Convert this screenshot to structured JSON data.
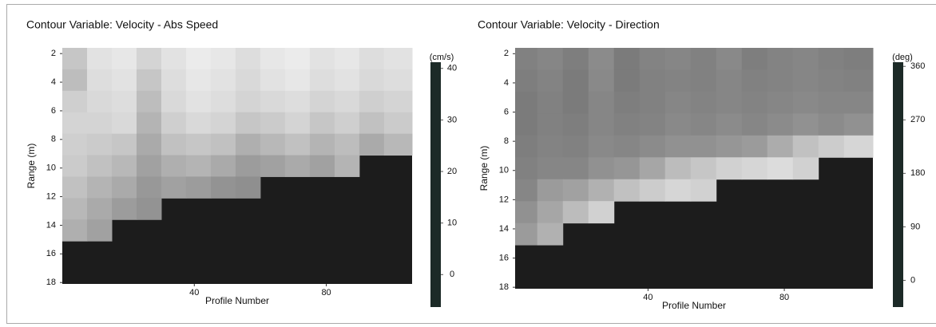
{
  "chart_data": [
    {
      "type": "heatmap",
      "title": "Contour Variable:  Velocity - Abs Speed",
      "xlabel": "Profile Number",
      "ylabel": "Range (m)",
      "x": [
        3.75,
        11.25,
        18.75,
        26.25,
        33.75,
        41.25,
        48.75,
        56.25,
        63.75,
        71.25,
        78.75,
        86.25,
        93.75,
        101.25
      ],
      "y": [
        2.35,
        3.85,
        5.35,
        6.85,
        8.35,
        9.85,
        11.35,
        12.85,
        14.35,
        15.85,
        17.35
      ],
      "z": [
        [
          30,
          36,
          37,
          33,
          36,
          38,
          37,
          35,
          37,
          38,
          36,
          37,
          35,
          36
        ],
        [
          28,
          35,
          36,
          30,
          35,
          37,
          36,
          34,
          36,
          37,
          35,
          36,
          34,
          35
        ],
        [
          32,
          34,
          35,
          28,
          34,
          36,
          35,
          33,
          34,
          35,
          33,
          34,
          32,
          33
        ],
        [
          33,
          33,
          34,
          26,
          32,
          34,
          33,
          30,
          31,
          33,
          30,
          32,
          29,
          31
        ],
        [
          32,
          31,
          30,
          24,
          29,
          30,
          29,
          25,
          27,
          29,
          26,
          28,
          24,
          27
        ],
        [
          31,
          29,
          27,
          22,
          25,
          26,
          24,
          21,
          22,
          24,
          22,
          26,
          null,
          null
        ],
        [
          29,
          26,
          24,
          20,
          22,
          21,
          19,
          18,
          null,
          null,
          null,
          null,
          null,
          null
        ],
        [
          27,
          24,
          21,
          19,
          null,
          null,
          null,
          null,
          null,
          null,
          null,
          null,
          null,
          null
        ],
        [
          25,
          22,
          null,
          null,
          null,
          null,
          null,
          null,
          null,
          null,
          null,
          null,
          null,
          null
        ],
        [
          null,
          null,
          null,
          null,
          null,
          null,
          null,
          null,
          null,
          null,
          null,
          null,
          null,
          null
        ],
        [
          null,
          null,
          null,
          null,
          null,
          null,
          null,
          null,
          null,
          null,
          null,
          null,
          null,
          null
        ]
      ],
      "xlim": [
        0,
        106
      ],
      "ylim": [
        1.6,
        18.1
      ],
      "y_inverted": true,
      "xticks": [
        40,
        80
      ],
      "yticks": [
        2,
        4,
        6,
        8,
        10,
        12,
        14,
        16,
        18
      ],
      "nodata_color": "#1c1c1c",
      "colorbar": {
        "label": "(cm/s)",
        "lim": [
          -6.3,
          41.2
        ],
        "ticks": [
          0,
          10,
          20,
          30,
          40
        ],
        "color": "#1c2a27"
      }
    },
    {
      "type": "heatmap",
      "title": "Contour Variable:  Velocity - Direction",
      "xlabel": "Profile Number",
      "ylabel": "Range (m)",
      "x": [
        3.75,
        11.25,
        18.75,
        26.25,
        33.75,
        41.25,
        48.75,
        56.25,
        63.75,
        71.25,
        78.75,
        86.25,
        93.75,
        101.25
      ],
      "y": [
        2.35,
        3.85,
        5.35,
        6.85,
        8.35,
        9.85,
        11.35,
        12.85,
        14.35,
        15.85,
        17.35
      ],
      "z": [
        [
          140,
          150,
          135,
          160,
          130,
          145,
          150,
          140,
          155,
          135,
          145,
          150,
          140,
          135
        ],
        [
          135,
          145,
          130,
          155,
          130,
          140,
          145,
          140,
          150,
          140,
          145,
          150,
          145,
          140
        ],
        [
          130,
          140,
          130,
          150,
          135,
          140,
          150,
          145,
          150,
          145,
          150,
          155,
          150,
          150
        ],
        [
          130,
          140,
          135,
          150,
          140,
          145,
          155,
          150,
          160,
          150,
          160,
          170,
          160,
          170
        ],
        [
          135,
          145,
          140,
          155,
          150,
          160,
          170,
          170,
          180,
          190,
          220,
          260,
          280,
          300
        ],
        [
          140,
          150,
          150,
          170,
          180,
          210,
          250,
          270,
          290,
          300,
          310,
          290,
          null,
          null
        ],
        [
          150,
          190,
          200,
          230,
          260,
          280,
          300,
          290,
          null,
          null,
          null,
          null,
          null,
          null
        ],
        [
          170,
          210,
          250,
          290,
          null,
          null,
          null,
          null,
          null,
          null,
          null,
          null,
          null,
          null
        ],
        [
          190,
          230,
          null,
          null,
          null,
          null,
          null,
          null,
          null,
          null,
          null,
          null,
          null,
          null
        ],
        [
          null,
          null,
          null,
          null,
          null,
          null,
          null,
          null,
          null,
          null,
          null,
          null,
          null,
          null
        ],
        [
          null,
          null,
          null,
          null,
          null,
          null,
          null,
          null,
          null,
          null,
          null,
          null,
          null,
          null
        ]
      ],
      "xlim": [
        1,
        106
      ],
      "ylim": [
        1.6,
        18.1
      ],
      "y_inverted": true,
      "xticks": [
        40,
        80
      ],
      "yticks": [
        2,
        4,
        6,
        8,
        10,
        12,
        14,
        16,
        18
      ],
      "nodata_color": "#1c1c1c",
      "colorbar": {
        "label": "(deg)",
        "lim": [
          -45,
          367
        ],
        "ticks": [
          0,
          90,
          180,
          270,
          360
        ],
        "color": "#1c2a27"
      }
    }
  ]
}
